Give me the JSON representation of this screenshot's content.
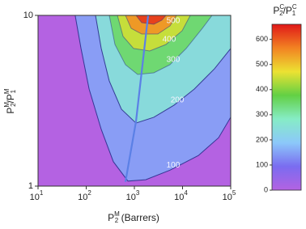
{
  "chart_data": {
    "type": "contour",
    "xlabel": [
      "P",
      "M",
      "2",
      " (Barrers)"
    ],
    "ylabel": [
      "P",
      "M",
      "2",
      "/P",
      "M",
      "1"
    ],
    "colorbar_label": [
      "P",
      "C",
      "2",
      "/P",
      "C",
      "1"
    ],
    "xscale": "log",
    "yscale": "log",
    "xlim": [
      10,
      100000
    ],
    "ylim": [
      1,
      10
    ],
    "xticks": [
      {
        "value": 10,
        "label": "10",
        "exponent": "1"
      },
      {
        "value": 100,
        "label": "10",
        "exponent": "2"
      },
      {
        "value": 1000,
        "label": "10",
        "exponent": "3"
      },
      {
        "value": 10000,
        "label": "10",
        "exponent": "4"
      },
      {
        "value": 100000,
        "label": "10",
        "exponent": "5"
      }
    ],
    "yticks": [
      1,
      10
    ],
    "background": "#b462e2",
    "contour_color": "#2b2f8c",
    "colormap": [
      "#b462e2",
      "#7a6cf0",
      "#8cc8fa",
      "#86ecc6",
      "#62d044",
      "#ece232",
      "#f28222",
      "#e01818"
    ],
    "clim": [
      0,
      660
    ],
    "cticks": [
      0,
      100,
      200,
      300,
      400,
      500,
      600
    ],
    "contours": [
      {
        "level": 100,
        "show_label": true,
        "x": [
          59,
          78,
          115,
          205,
          366,
          735,
          1718,
          5480,
          21300,
          56000,
          100000
        ],
        "y": [
          10,
          6.4,
          3.7,
          2.15,
          1.39,
          1.07,
          1.09,
          1.24,
          1.51,
          1.92,
          2.53
        ]
      },
      {
        "level": 200,
        "show_label": true,
        "x": [
          156,
          205,
          301,
          538,
          1080,
          2530,
          6670,
          17500,
          46100,
          100000
        ],
        "y": [
          10,
          6.4,
          4.13,
          2.82,
          2.34,
          2.53,
          2.98,
          3.7,
          4.87,
          6.4
        ]
      },
      {
        "level": 300,
        "show_label": true,
        "x": [
          301,
          395,
          653,
          1170,
          2530,
          5480,
          11900,
          25800,
          41000
        ],
        "y": [
          10,
          6.75,
          5.14,
          4.51,
          4.61,
          5.14,
          6.4,
          8.4,
          10
        ]
      },
      {
        "level": 400,
        "show_label": true,
        "x": [
          444,
          582,
          962,
          2080,
          4520,
          9820,
          14500
        ],
        "y": [
          10,
          7.53,
          6.4,
          6.19,
          6.75,
          8.13,
          10
        ]
      },
      {
        "level": 500,
        "show_label": true,
        "x": [
          653,
          857,
          1420,
          3070,
          5480,
          7480
        ],
        "y": [
          10,
          8.4,
          7.78,
          7.78,
          8.67,
          10
        ]
      },
      {
        "level": 600,
        "show_label": false,
        "x": [
          1080,
          1420,
          2530,
          3700,
          4520
        ],
        "y": [
          10,
          9.06,
          8.87,
          9.37,
          10
        ]
      }
    ],
    "ridge": {
      "color": "#5b80e6",
      "x": [
        653,
        1080,
        1930
      ],
      "y": [
        1.06,
        2.39,
        10
      ]
    }
  }
}
